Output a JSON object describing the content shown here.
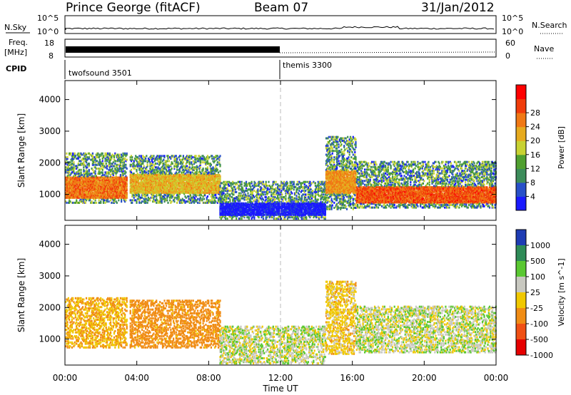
{
  "header": {
    "station": "Prince George (fitACF)",
    "beam": "Beam 07",
    "date": "31/Jan/2012"
  },
  "panels": {
    "nsky_label": "N.Sky",
    "nsky_ticks": [
      "10^5",
      "10^0"
    ],
    "nsearch_label": "N.Search",
    "nsearch_ticks": [
      "10^5",
      "10^0"
    ],
    "freq_label_1": "Freq.",
    "freq_label_2": "[MHz]",
    "freq_ticks": [
      "18",
      "8"
    ],
    "nave_label": "Nave",
    "nave_ticks": [
      "60",
      "0"
    ],
    "cpid_label": "CPID",
    "cpid_modes": [
      {
        "name": "twofsound 3501",
        "start_hour": 0
      },
      {
        "name": "themis 3300",
        "start_hour": 12
      }
    ]
  },
  "chart_data": [
    {
      "type": "heatmap",
      "title": "",
      "xlabel": "Time UT",
      "ylabel": "Slant Range [km]",
      "x_ticks": [
        "00:00",
        "04:00",
        "08:00",
        "12:00",
        "16:00",
        "20:00",
        "00:00"
      ],
      "xlim_hours": [
        0,
        24
      ],
      "y_ticks": [
        1000,
        2000,
        3000,
        4000
      ],
      "ylim": [
        180,
        4600
      ],
      "colorbar": {
        "label": "Power [dB]",
        "ticks": [
          4,
          8,
          12,
          16,
          20,
          24,
          28
        ],
        "colors": [
          "#1a1aff",
          "#2850c8",
          "#3c8c5a",
          "#50a030",
          "#c8d232",
          "#e6aa1e",
          "#f07814",
          "#f03c0a",
          "#ff0000"
        ]
      },
      "echo_regions": [
        {
          "start_hour": 0.0,
          "end_hour": 3.4,
          "range_km": [
            700,
            2300
          ],
          "core_km": [
            850,
            1500
          ],
          "power_db": 26
        },
        {
          "start_hour": 3.6,
          "end_hour": 8.6,
          "range_km": [
            700,
            2200
          ],
          "core_km": [
            1000,
            1600
          ],
          "power_db": 22
        },
        {
          "start_hour": 8.6,
          "end_hour": 14.5,
          "range_km": [
            200,
            1400
          ],
          "core_km": [
            300,
            700
          ],
          "power_db": 6
        },
        {
          "start_hour": 14.5,
          "end_hour": 16.2,
          "range_km": [
            500,
            2800
          ],
          "core_km": [
            1000,
            1700
          ],
          "power_db": 24
        },
        {
          "start_hour": 16.2,
          "end_hour": 24.0,
          "range_km": [
            550,
            2000
          ],
          "core_km": [
            700,
            1200
          ],
          "power_db": 28
        }
      ]
    },
    {
      "type": "heatmap",
      "title": "",
      "xlabel": "Time UT",
      "ylabel": "Slant Range [km]",
      "x_ticks": [
        "00:00",
        "04:00",
        "08:00",
        "12:00",
        "16:00",
        "20:00",
        "00:00"
      ],
      "xlim_hours": [
        0,
        24
      ],
      "y_ticks": [
        1000,
        2000,
        3000,
        4000
      ],
      "ylim": [
        180,
        4600
      ],
      "colorbar": {
        "label": "Velocity [m s^-1]",
        "ticks": [
          1000,
          500,
          100,
          25,
          -25,
          -100,
          -500,
          -1000
        ],
        "colors": [
          "#1e3cb4",
          "#2e8b57",
          "#5ac832",
          "#c8c8c0",
          "#f0c800",
          "#f08c14",
          "#f05014",
          "#e60000"
        ]
      },
      "echo_regions": [
        {
          "start_hour": 0.0,
          "end_hour": 3.4,
          "range_km": [
            700,
            2300
          ],
          "velocity_ms": -100
        },
        {
          "start_hour": 3.6,
          "end_hour": 8.6,
          "range_km": [
            700,
            2200
          ],
          "velocity_ms": -150
        },
        {
          "start_hour": 8.6,
          "end_hour": 14.5,
          "range_km": [
            200,
            1400
          ],
          "velocity_ms": 0
        },
        {
          "start_hour": 14.5,
          "end_hour": 16.2,
          "range_km": [
            500,
            2800
          ],
          "velocity_ms": -60
        },
        {
          "start_hour": 16.2,
          "end_hour": 24.0,
          "range_km": [
            550,
            2000
          ],
          "velocity_ms": 0
        }
      ]
    }
  ]
}
